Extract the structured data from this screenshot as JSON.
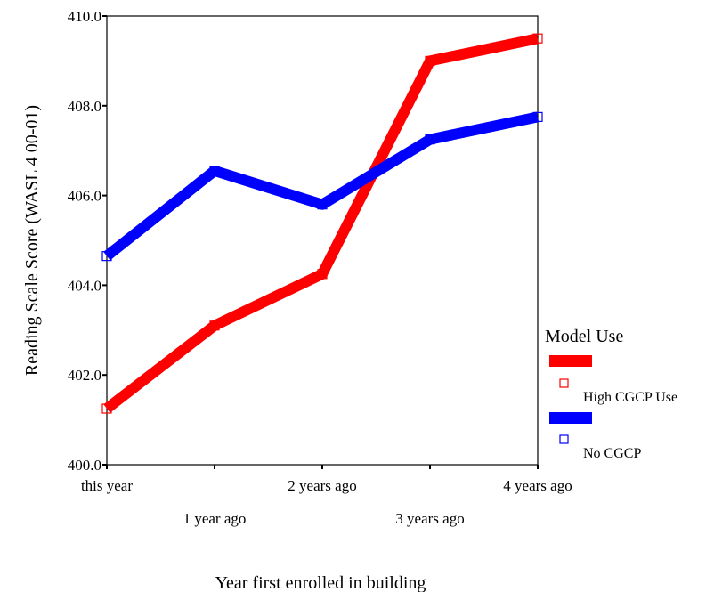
{
  "chart_data": {
    "type": "line",
    "xlabel": "Year first enrolled in building",
    "ylabel": "Reading Scale Score (WASL 4 00-01)",
    "categories": [
      "this year",
      "1 year ago",
      "2 years ago",
      "3 years ago",
      "4 years ago"
    ],
    "yticks": [
      "400.0",
      "402.0",
      "404.0",
      "406.0",
      "408.0",
      "410.0"
    ],
    "ylim": [
      400,
      410
    ],
    "grid": false,
    "legend": {
      "title": "Model Use",
      "placement": "right"
    },
    "series": [
      {
        "name": "High CGCP Use",
        "color": "#ff0000",
        "values": [
          401.25,
          403.1,
          404.25,
          409.0,
          409.5
        ]
      },
      {
        "name": "No CGCP",
        "color": "#0000ff",
        "values": [
          404.65,
          406.55,
          405.8,
          407.25,
          407.75
        ]
      }
    ]
  }
}
